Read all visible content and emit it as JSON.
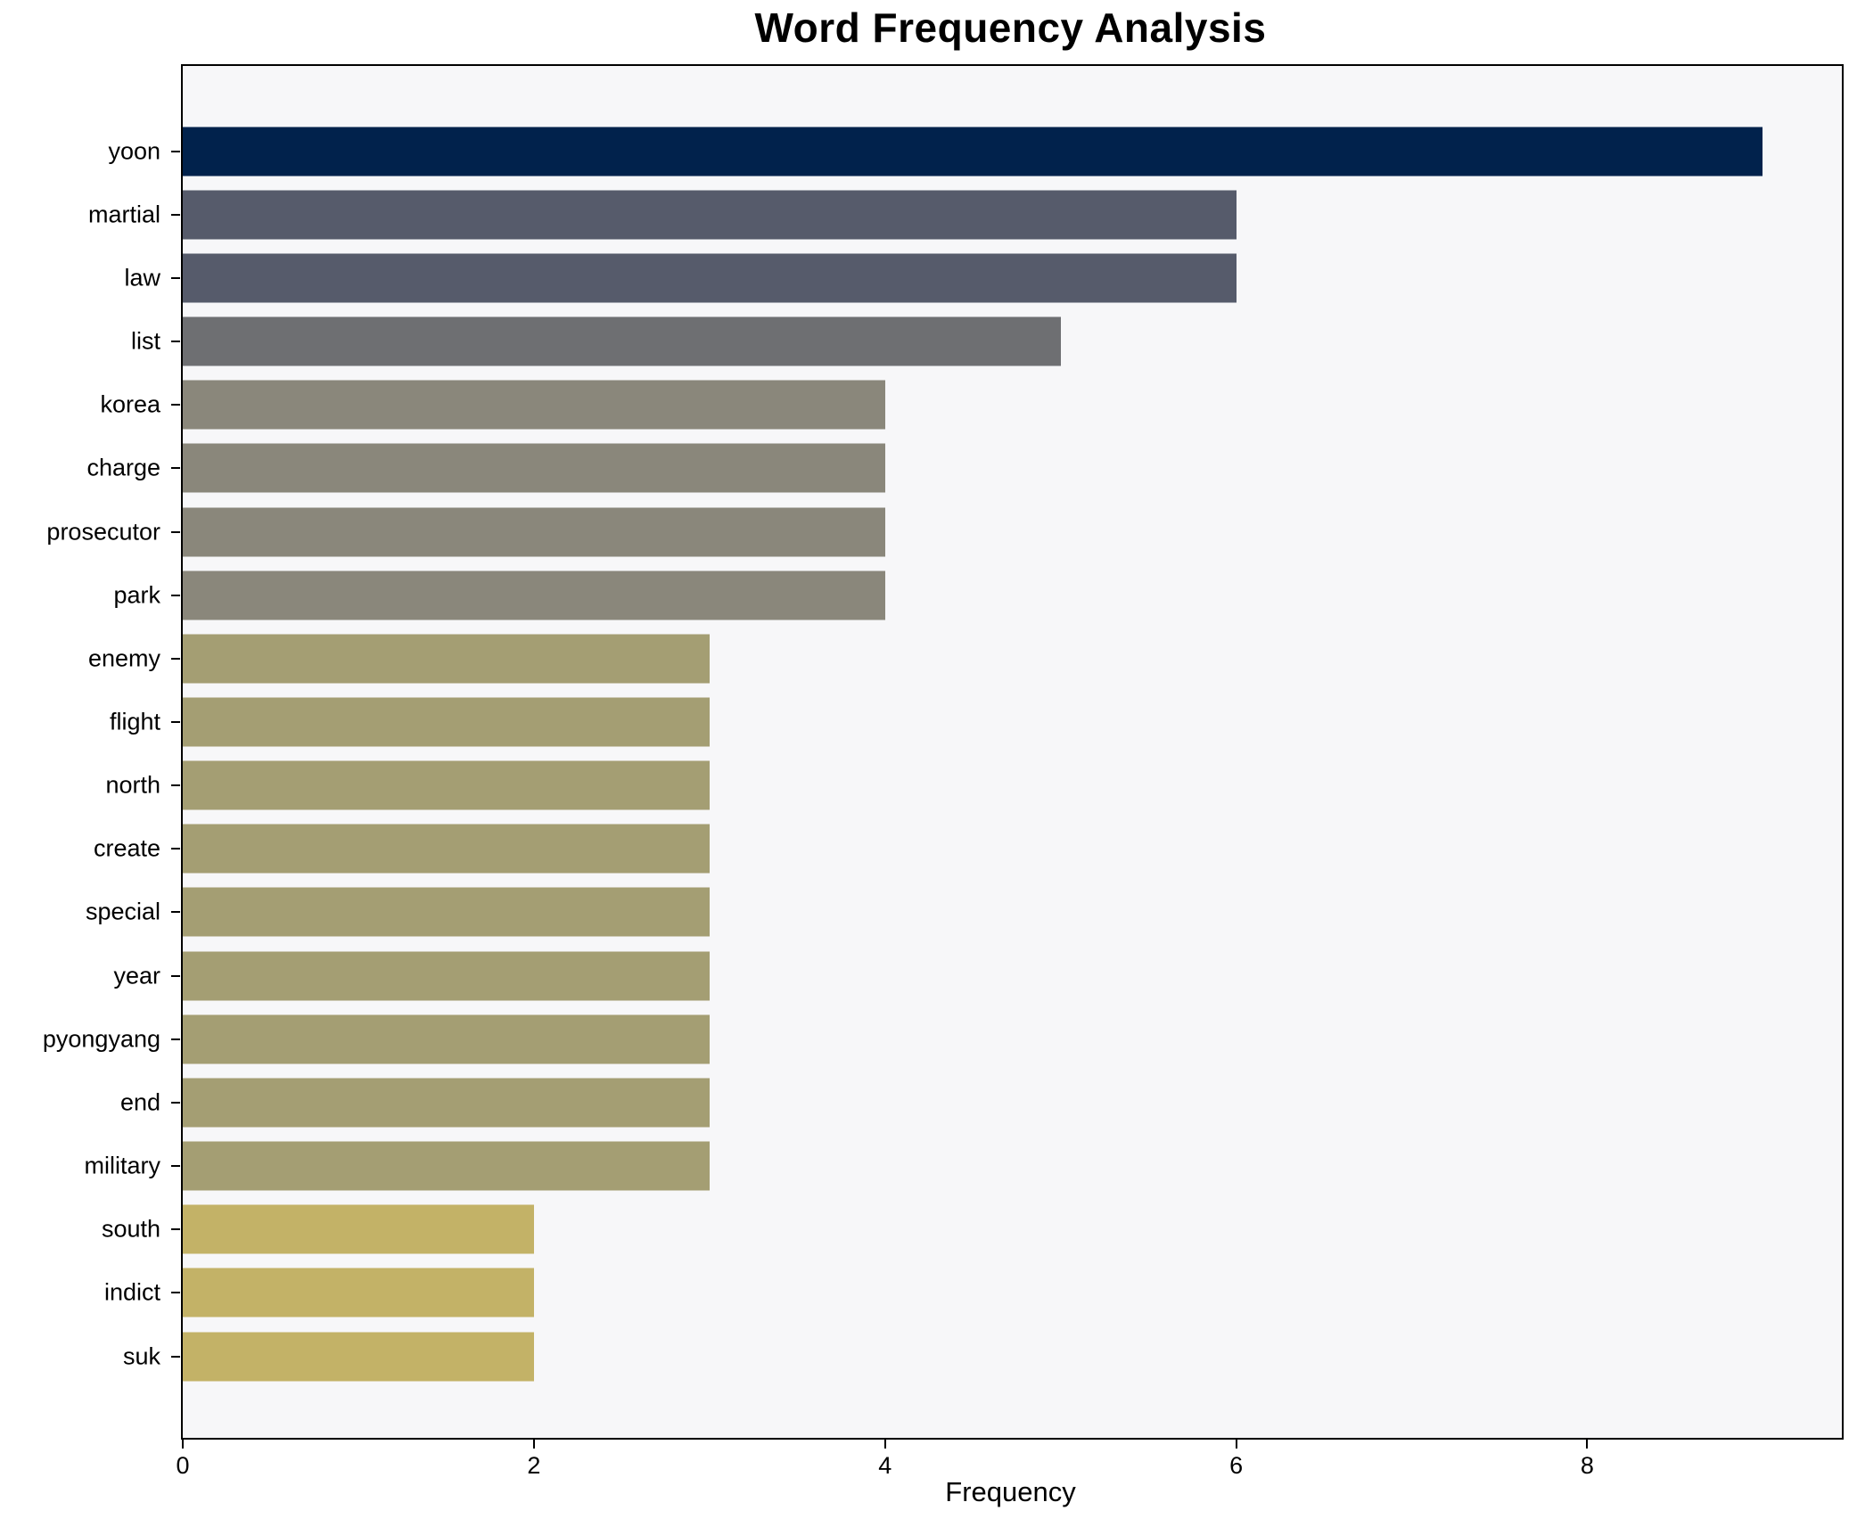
{
  "chart_data": {
    "type": "bar",
    "orientation": "horizontal",
    "title": "Word Frequency Analysis",
    "xlabel": "Frequency",
    "ylabel": "",
    "categories": [
      "yoon",
      "martial",
      "law",
      "list",
      "korea",
      "charge",
      "prosecutor",
      "park",
      "enemy",
      "flight",
      "north",
      "create",
      "special",
      "year",
      "pyongyang",
      "end",
      "military",
      "south",
      "indict",
      "suk"
    ],
    "values": [
      9,
      6,
      6,
      5,
      4,
      4,
      4,
      4,
      3,
      3,
      3,
      3,
      3,
      3,
      3,
      3,
      3,
      2,
      2,
      2
    ],
    "bar_colors": [
      "#01224c",
      "#565b6b",
      "#565b6b",
      "#6e6f72",
      "#8a877b",
      "#8a877b",
      "#8a877b",
      "#8a877b",
      "#a49e73",
      "#a49e73",
      "#a49e73",
      "#a49e73",
      "#a49e73",
      "#a49e73",
      "#a49e73",
      "#a49e73",
      "#a49e73",
      "#c3b267",
      "#c3b267",
      "#c3b267"
    ],
    "xticks": [
      0,
      2,
      4,
      6,
      8
    ],
    "xlim": [
      0,
      9.45
    ],
    "grid": false,
    "legend_position": "none",
    "colors": {
      "figure_bg": "#ffffff",
      "plot_bg": "#f7f7f9",
      "spine": "#000000",
      "text": "#000000"
    }
  }
}
